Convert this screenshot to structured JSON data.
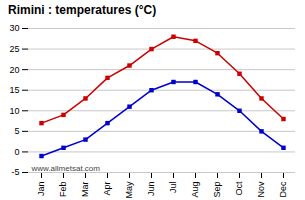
{
  "chart_data": {
    "type": "line",
    "title": "Rimini : temperatures (°C)",
    "categories": [
      "Jan",
      "Feb",
      "Mar",
      "Apr",
      "May",
      "Jun",
      "Jul",
      "Aug",
      "Sep",
      "Oct",
      "Nov",
      "Dec"
    ],
    "series": [
      {
        "color": "#cc0000",
        "marker": "square",
        "values": [
          7,
          9,
          13,
          18,
          21,
          25,
          28,
          27,
          24,
          19,
          13,
          8
        ]
      },
      {
        "color": "#0000cc",
        "marker": "square",
        "values": [
          -1,
          1,
          3,
          7,
          11,
          15,
          17,
          17,
          14,
          10,
          5,
          1
        ]
      }
    ],
    "ylim": [
      -5,
      30
    ],
    "yticks": [
      -5,
      0,
      5,
      10,
      15,
      20,
      25,
      30
    ],
    "grid": true,
    "annotation": "www.allmetsat.com"
  }
}
